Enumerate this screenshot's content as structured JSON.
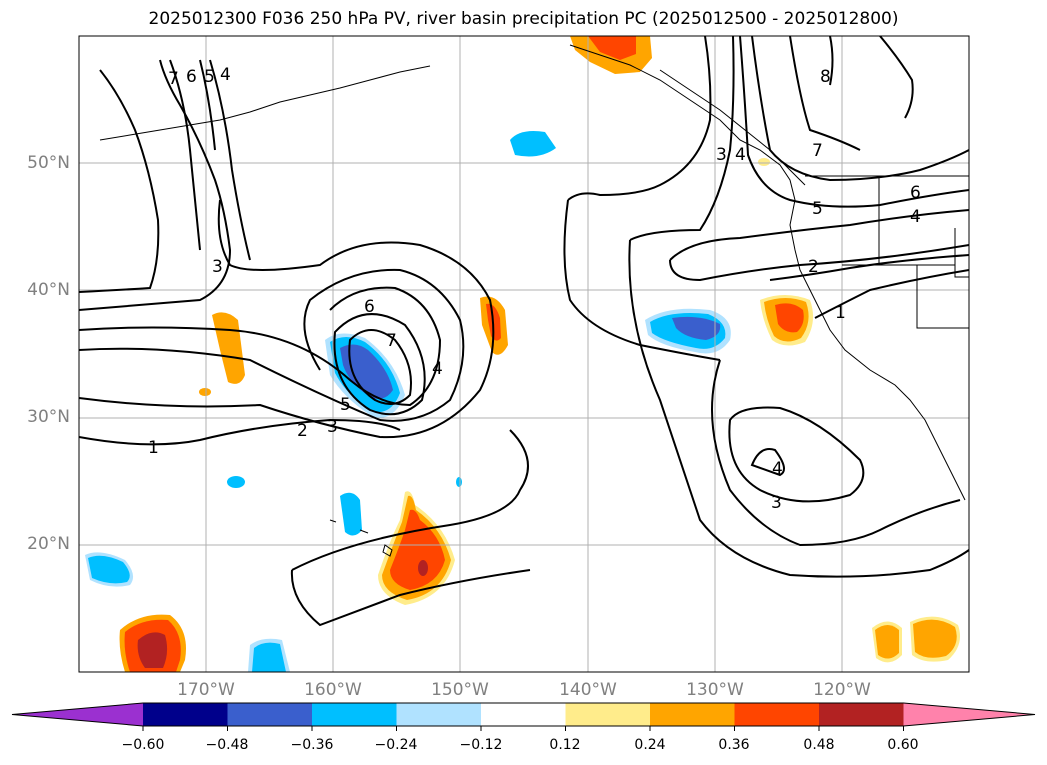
{
  "title": "2025012300 F036 250 hPa PV, river basin precipitation PC (2025012500 - 2025012800)",
  "map": {
    "lon_range": [
      -180,
      -110
    ],
    "lat_range": [
      10,
      60
    ],
    "grid": true
  },
  "lat_ticks": [
    {
      "value": 50,
      "label": "50°N"
    },
    {
      "value": 40,
      "label": "40°N"
    },
    {
      "value": 30,
      "label": "30°N"
    },
    {
      "value": 20,
      "label": "20°N"
    }
  ],
  "lon_ticks": [
    {
      "value": -170,
      "label": "170°W"
    },
    {
      "value": -160,
      "label": "160°W"
    },
    {
      "value": -150,
      "label": "150°W"
    },
    {
      "value": -140,
      "label": "140°W"
    },
    {
      "value": -130,
      "label": "130°W"
    },
    {
      "value": -120,
      "label": "120°W"
    }
  ],
  "contour_labels": [
    "1",
    "2",
    "3",
    "4",
    "5",
    "6",
    "7",
    "8"
  ],
  "colorbar": {
    "colors": [
      "#9b30d0",
      "#00008b",
      "#3a5fcd",
      "#00bfff",
      "#b0e2ff",
      "#ffffff",
      "#ffec8b",
      "#ffa500",
      "#ff4500",
      "#b22222",
      "#ff82ab"
    ],
    "ticks": [
      "−0.60",
      "−0.48",
      "−0.36",
      "−0.24",
      "−0.12",
      "0.12",
      "0.24",
      "0.36",
      "0.48",
      "0.60"
    ]
  }
}
